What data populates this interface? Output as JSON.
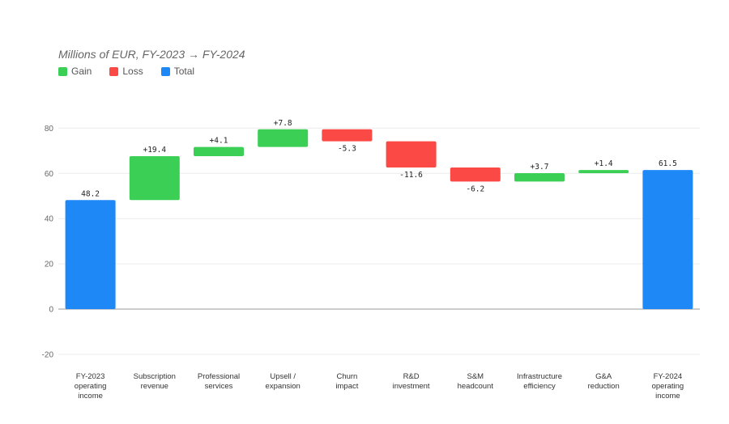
{
  "chart_data": {
    "type": "bar",
    "subtitle": "Millions of EUR, FY-2023 → FY-2024",
    "legend": {
      "placement": "top-left",
      "items": [
        {
          "label": "Gain",
          "color": "#3ccf55"
        },
        {
          "label": "Loss",
          "color": "#fb4a45"
        },
        {
          "label": "Total",
          "color": "#1e88f7"
        }
      ]
    },
    "ylim": [
      -20,
      80
    ],
    "yticks": [
      80,
      60,
      40,
      20,
      0,
      -20
    ],
    "grid": true,
    "categories": [
      [
        "FY-2023",
        "operating",
        "income"
      ],
      [
        "Subscription",
        "revenue"
      ],
      [
        "Professional",
        "services"
      ],
      [
        "Upsell /",
        "expansion"
      ],
      [
        "Churn",
        "impact"
      ],
      [
        "R&D",
        "investment"
      ],
      [
        "S&M",
        "headcount"
      ],
      [
        "Infrastructure",
        "efficiency"
      ],
      [
        "G&A",
        "reduction"
      ],
      [
        "FY-2024",
        "operating",
        "income"
      ]
    ],
    "bars": [
      {
        "kind": "total",
        "value": 48.2,
        "label": "48.2"
      },
      {
        "kind": "gain",
        "value": 19.4,
        "label": "+19.4"
      },
      {
        "kind": "gain",
        "value": 4.1,
        "label": "+4.1"
      },
      {
        "kind": "gain",
        "value": 7.8,
        "label": "+7.8"
      },
      {
        "kind": "loss",
        "value": -5.3,
        "label": "-5.3"
      },
      {
        "kind": "loss",
        "value": -11.6,
        "label": "-11.6"
      },
      {
        "kind": "loss",
        "value": -6.2,
        "label": "-6.2"
      },
      {
        "kind": "gain",
        "value": 3.7,
        "label": "+3.7"
      },
      {
        "kind": "gain",
        "value": 1.4,
        "label": "+1.4"
      },
      {
        "kind": "total",
        "value": 61.5,
        "label": "61.5"
      }
    ]
  }
}
